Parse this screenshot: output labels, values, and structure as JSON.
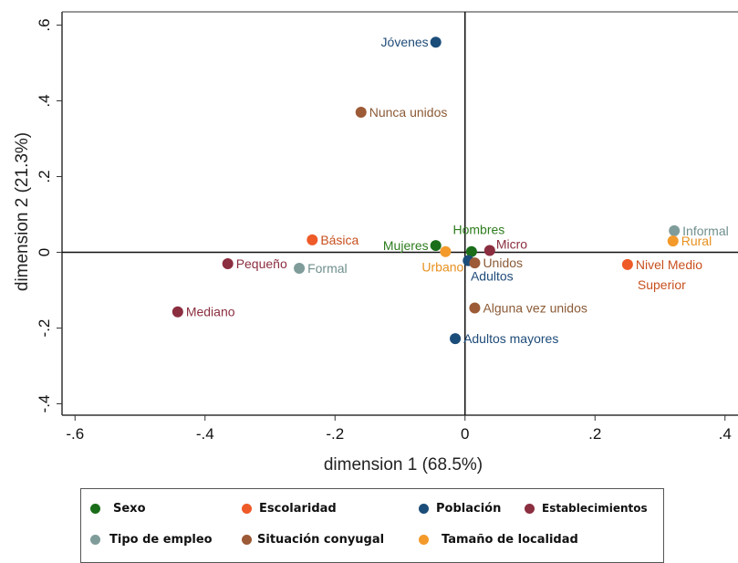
{
  "chart_data": {
    "type": "scatter",
    "xlabel": "dimension 1 (68.5%)",
    "ylabel": "dimension 2 (21.3%)",
    "xlim": [
      -0.62,
      0.42
    ],
    "ylim": [
      -0.43,
      0.635
    ],
    "x_ticks": [
      -0.6,
      -0.4,
      -0.2,
      0,
      0.2,
      0.4
    ],
    "y_ticks": [
      -0.4,
      -0.2,
      0,
      0.2,
      0.4,
      0.6
    ],
    "x_tick_labels": [
      "-.6",
      "-.4",
      "-.2",
      "0",
      ".2",
      ".4"
    ],
    "y_tick_labels": [
      "-.4",
      "-.2",
      "0",
      ".2",
      ".4",
      ".6"
    ],
    "reference_lines": {
      "x": 0,
      "y": 0
    },
    "grid": false,
    "series": [
      {
        "name": "Sexo",
        "color": "#1a6e1a",
        "label_color": "#2e7d1e",
        "points": [
          {
            "label": "Mujeres",
            "x": -0.045,
            "y": 0.018,
            "anchor": "left"
          },
          {
            "label": "Hombres",
            "x": 0.01,
            "y": 0.002,
            "anchor": "above"
          }
        ]
      },
      {
        "name": "Escolaridad",
        "color": "#ee5a28",
        "label_color": "#c8501e",
        "points": [
          {
            "label": "Básica",
            "x": -0.235,
            "y": 0.033,
            "anchor": "right"
          },
          {
            "label": "Nivel Medio Superior",
            "x": 0.25,
            "y": -0.032,
            "anchor": "right-wrap"
          }
        ]
      },
      {
        "name": "Población",
        "color": "#1b4d7a",
        "label_color": "#1f4b78",
        "points": [
          {
            "label": "Jóvenes",
            "x": -0.045,
            "y": 0.555,
            "anchor": "left"
          },
          {
            "label": "Adultos",
            "x": 0.005,
            "y": -0.022,
            "anchor": "below"
          },
          {
            "label": "Adultos mayores",
            "x": -0.015,
            "y": -0.228,
            "anchor": "right"
          }
        ]
      },
      {
        "name": "Establecimientos",
        "color": "#8b2e3f",
        "label_color": "#8b2e3f",
        "points": [
          {
            "label": "Micro",
            "x": 0.038,
            "y": 0.005,
            "anchor": "right-up"
          },
          {
            "label": "Pequeño",
            "x": -0.365,
            "y": -0.03,
            "anchor": "right"
          },
          {
            "label": "Mediano",
            "x": -0.442,
            "y": -0.157,
            "anchor": "right"
          }
        ]
      },
      {
        "name": "Tipo de empleo",
        "color": "#7f9c9a",
        "label_color": "#6f8f8d",
        "points": [
          {
            "label": "Informal",
            "x": 0.322,
            "y": 0.057,
            "anchor": "right"
          },
          {
            "label": "Formal",
            "x": -0.255,
            "y": -0.042,
            "anchor": "right"
          }
        ]
      },
      {
        "name": "Situación conyugal",
        "color": "#9c5a36",
        "label_color": "#8b5a36",
        "points": [
          {
            "label": "Nunca unidos",
            "x": -0.16,
            "y": 0.37,
            "anchor": "right"
          },
          {
            "label": "Unidos",
            "x": 0.015,
            "y": -0.028,
            "anchor": "right"
          },
          {
            "label": "Alguna vez unidos",
            "x": 0.015,
            "y": -0.147,
            "anchor": "right"
          }
        ]
      },
      {
        "name": "Tamaño de localidad",
        "color": "#f39a2b",
        "label_color": "#e8901e",
        "points": [
          {
            "label": "Urbano",
            "x": -0.03,
            "y": 0.002,
            "anchor": "below-left"
          },
          {
            "label": "Rural",
            "x": 0.32,
            "y": 0.03,
            "anchor": "right"
          }
        ]
      }
    ],
    "legend": {
      "placement": "bottom",
      "items": [
        {
          "label": "Sexo",
          "color": "#1a6e1a"
        },
        {
          "label": "Escolaridad",
          "color": "#ee5a28"
        },
        {
          "label": "Población",
          "color": "#1b4d7a"
        },
        {
          "label": "Establecimientos",
          "color": "#8b2e3f"
        },
        {
          "label": "Tipo de empleo",
          "color": "#7f9c9a"
        },
        {
          "label": "Situación conyugal",
          "color": "#9c5a36"
        },
        {
          "label": "Tamaño de localidad",
          "color": "#f39a2b"
        }
      ]
    }
  }
}
